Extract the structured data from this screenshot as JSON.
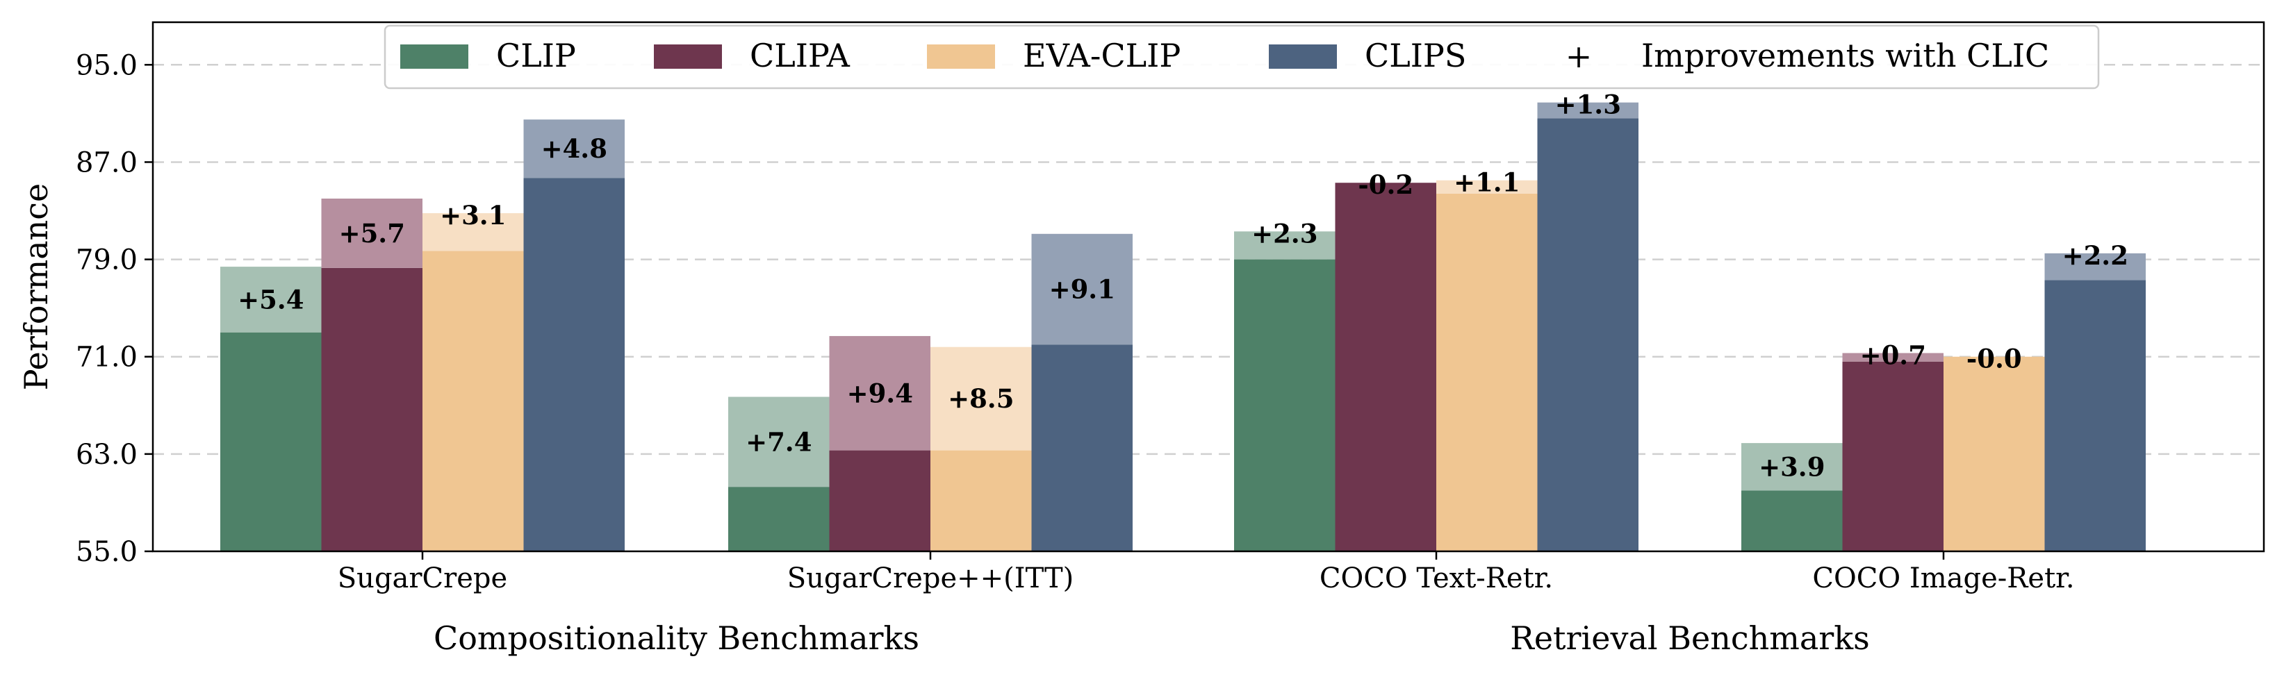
{
  "chart_data": {
    "type": "bar",
    "ylabel": "Performance",
    "xlabel": "",
    "ylim": [
      55.0,
      98.5
    ],
    "yticks": [
      "55.0",
      "63.0",
      "71.0",
      "79.0",
      "87.0",
      "95.0"
    ],
    "grid": "horizontal dashed",
    "legend_position": "top-center",
    "categories": [
      "SugarCrepe",
      "SugarCrepe++(ITT)",
      "COCO Text-Retr.",
      "COCO Image-Retr."
    ],
    "group_labels": [
      {
        "label": "Compositionality Benchmarks",
        "categories": [
          0,
          1
        ]
      },
      {
        "label": "Retrieval Benchmarks",
        "categories": [
          2,
          3
        ]
      }
    ],
    "series": [
      {
        "name": "CLIP",
        "color": "#4e8168",
        "light_color": "#a6c0b3",
        "base": [
          73.0,
          60.3,
          79.0,
          60.0
        ],
        "improvement": [
          5.4,
          7.4,
          2.3,
          3.9
        ],
        "improvement_labels": [
          "+5.4",
          "+7.4",
          "+2.3",
          "+3.9"
        ]
      },
      {
        "name": "CLIPA",
        "color": "#6e364e",
        "light_color": "#b68f9f",
        "base": [
          78.3,
          63.3,
          85.3,
          70.6
        ],
        "improvement": [
          5.7,
          9.4,
          -0.2,
          0.7
        ],
        "improvement_labels": [
          "+5.7",
          "+9.4",
          "-0.2",
          "+0.7"
        ]
      },
      {
        "name": "EVA-CLIP",
        "color": "#f0c692",
        "light_color": "#f7dfc4",
        "base": [
          79.7,
          63.3,
          84.4,
          71.0
        ],
        "improvement": [
          3.1,
          8.5,
          1.1,
          -0.0
        ],
        "improvement_labels": [
          "+3.1",
          "+8.5",
          "+1.1",
          "-0.0"
        ]
      },
      {
        "name": "CLIPS",
        "color": "#4d6380",
        "light_color": "#94a1b5",
        "base": [
          85.7,
          72.0,
          90.6,
          77.3
        ],
        "improvement": [
          4.8,
          9.1,
          1.3,
          2.2
        ],
        "improvement_labels": [
          "+4.8",
          "+9.1",
          "+1.3",
          "+2.2"
        ]
      }
    ],
    "legend_extra": {
      "symbol": "+",
      "label": "Improvements with CLIC"
    }
  }
}
